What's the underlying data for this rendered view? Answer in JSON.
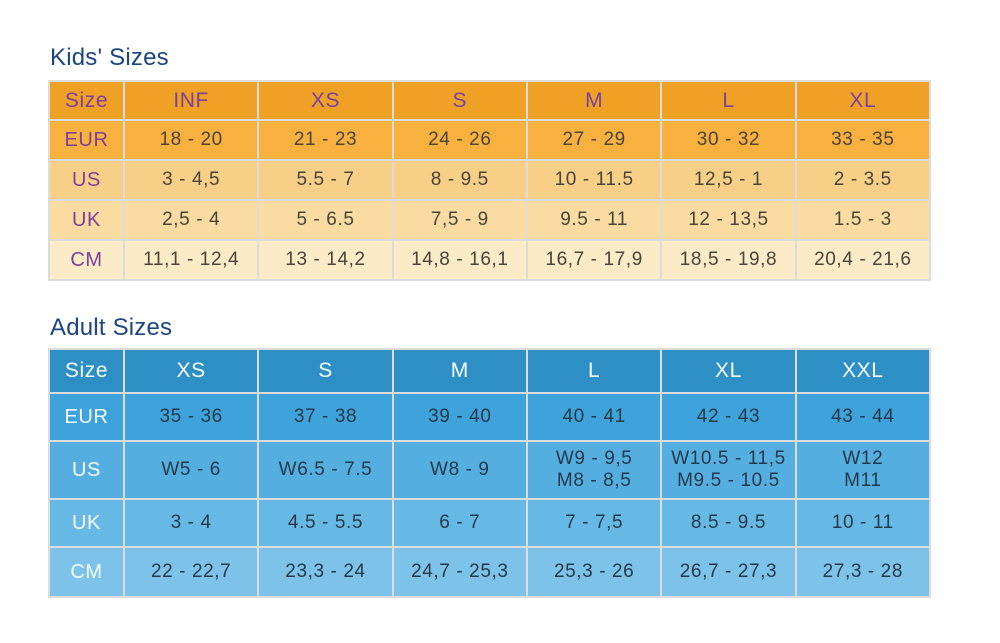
{
  "page": {
    "background": "#ffffff",
    "title_color": "#1b4583"
  },
  "kids": {
    "title": "Kids' Sizes",
    "header": [
      "Size",
      "INF",
      "XS",
      "S",
      "M",
      "L",
      "XL"
    ],
    "rows": [
      {
        "label": "EUR",
        "cells": [
          "18 - 20",
          "21 - 23",
          "24 - 26",
          "27 - 29",
          "30 - 32",
          "33 - 35"
        ]
      },
      {
        "label": "US",
        "cells": [
          "3 - 4,5",
          "5.5 - 7",
          "8 - 9.5",
          "10 - 11.5",
          "12,5 - 1",
          "2 - 3.5"
        ]
      },
      {
        "label": "UK",
        "cells": [
          "2,5 - 4",
          "5 - 6.5",
          "7,5 - 9",
          "9.5 - 11",
          "12 - 13,5",
          "1.5 - 3"
        ]
      },
      {
        "label": "CM",
        "cells": [
          "11,1 - 12,4",
          "13 - 14,2",
          "14,8 - 16,1",
          "16,7 - 17,9",
          "18,5 - 19,8",
          "20,4 - 21,6"
        ]
      }
    ],
    "colors": {
      "header_bg": "#efa126",
      "row_eur_bg": "#f8b13f",
      "row_us_bg": "#f8cf87",
      "row_uk_bg": "#fadba1",
      "row_cm_bg": "#fcebc7",
      "label_text": "#7d3f9d",
      "cell_text": "#4a443a"
    }
  },
  "adult": {
    "title": "Adult Sizes",
    "header": [
      "Size",
      "XS",
      "S",
      "M",
      "L",
      "XL",
      "XXL"
    ],
    "rows": [
      {
        "label": "EUR",
        "cells": [
          "35 - 36",
          "37 - 38",
          "39 - 40",
          "40 - 41",
          "42 - 43",
          "43 - 44"
        ]
      },
      {
        "label": "US",
        "cells": [
          "W5 - 6",
          "W6.5 - 7.5",
          "W8 - 9",
          "W9 - 9,5\nM8 - 8,5",
          "W10.5 - 11,5\nM9.5 - 10.5",
          "W12\nM11"
        ]
      },
      {
        "label": "UK",
        "cells": [
          "3 - 4",
          "4.5 - 5.5",
          "6 - 7",
          "7 - 7,5",
          "8.5 - 9.5",
          "10 - 11"
        ]
      },
      {
        "label": "CM",
        "cells": [
          "22 - 22,7",
          "23,3 - 24",
          "24,7 - 25,3",
          "25,3 - 26",
          "26,7 - 27,3",
          "27,3 - 28"
        ]
      }
    ],
    "colors": {
      "header_bg": "#2e8fc4",
      "row_eur_bg": "#3ea3da",
      "row_us_bg": "#54afe0",
      "row_uk_bg": "#66b9e5",
      "row_cm_bg": "#7dc3e9",
      "label_text": "#f6fbfe",
      "cell_text": "#24394a"
    }
  }
}
